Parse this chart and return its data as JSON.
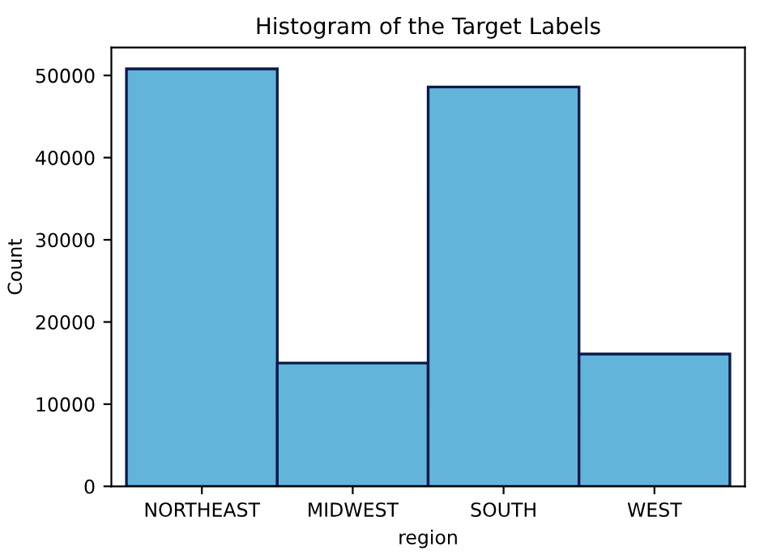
{
  "chart_data": {
    "type": "bar",
    "title": "Histogram of the Target Labels",
    "xlabel": "region",
    "ylabel": "Count",
    "categories": [
      "NORTHEAST",
      "MIDWEST",
      "SOUTH",
      "WEST"
    ],
    "values": [
      50800,
      15000,
      48600,
      16100
    ],
    "color": "#62b4da",
    "ylim": [
      0,
      53400
    ],
    "yticks": [
      0,
      10000,
      20000,
      30000,
      40000,
      50000
    ],
    "grid": false
  }
}
